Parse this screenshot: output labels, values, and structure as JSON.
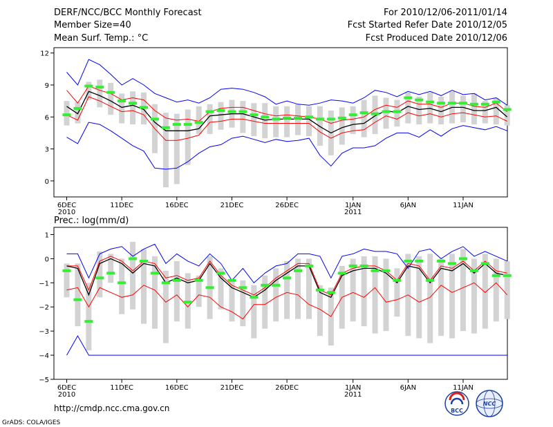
{
  "header": {
    "title": "DERF/NCC/BCC Monthly Forecast",
    "member_size": "Member Size=40",
    "variable": "Mean Surf. Temp.: °C",
    "period": "For 2010/12/06-2011/01/14",
    "start_date": "Fcst Started Refer Date 2010/12/05",
    "produced_date": "Fcst Produced Date 2010/12/06"
  },
  "footer": {
    "url": "http://cmdp.ncc.cma.gov.cn",
    "credit": "GrADS: COLA/IGES",
    "logo_bcc": "BCC",
    "logo_ncc": "NCC"
  },
  "colors": {
    "envelope": "#0000ff",
    "spread": "#ff0000",
    "mean": "#000000",
    "observed": "#33ee33",
    "box": "#d3d3d3"
  },
  "chart_data": [
    {
      "type": "line",
      "title": "Mean Surf. Temp.: °C",
      "x_start_day": 1,
      "xticks": [
        {
          "day": 1,
          "label": "6DEC",
          "year": "2010"
        },
        {
          "day": 6,
          "label": "11DEC",
          "year": ""
        },
        {
          "day": 11,
          "label": "16DEC",
          "year": ""
        },
        {
          "day": 16,
          "label": "21DEC",
          "year": ""
        },
        {
          "day": 21,
          "label": "26DEC",
          "year": ""
        },
        {
          "day": 27,
          "label": "1JAN",
          "year": "2011"
        },
        {
          "day": 32,
          "label": "6JAN",
          "year": ""
        },
        {
          "day": 37,
          "label": "11JAN",
          "year": ""
        }
      ],
      "ylim": [
        -1.5,
        12.5
      ],
      "yticks": [
        0,
        3,
        6,
        9,
        12
      ],
      "ytick_labels": [
        "0",
        "3",
        "6",
        "9",
        "12"
      ],
      "series": [
        {
          "name": "maximum",
          "values": [
            10.2,
            9.0,
            11.4,
            10.9,
            10.0,
            9.0,
            9.6,
            9.0,
            8.2,
            7.8,
            7.4,
            7.6,
            7.3,
            7.8,
            8.6,
            8.7,
            8.6,
            8.3,
            7.9,
            7.2,
            7.5,
            7.2,
            7.1,
            7.3,
            7.6,
            7.5,
            7.3,
            7.8,
            8.5,
            8.3,
            7.9,
            8.4,
            8.1,
            8.4,
            8.0,
            8.5,
            8.1,
            8.2,
            7.6,
            7.8,
            7.1
          ]
        },
        {
          "name": "upper",
          "values": [
            8.5,
            7.3,
            8.9,
            8.5,
            8.2,
            7.6,
            7.8,
            7.6,
            6.6,
            5.9,
            5.7,
            5.8,
            5.6,
            6.5,
            6.8,
            6.9,
            6.9,
            6.6,
            6.3,
            6.1,
            6.2,
            6.1,
            6.0,
            5.8,
            5.4,
            5.7,
            5.8,
            6.0,
            6.7,
            7.1,
            6.9,
            7.5,
            7.2,
            7.2,
            6.9,
            7.3,
            7.3,
            7.0,
            6.9,
            7.3,
            6.5
          ]
        },
        {
          "name": "mean",
          "values": [
            7.0,
            6.3,
            8.4,
            8.0,
            7.5,
            6.9,
            7.1,
            6.7,
            5.5,
            4.7,
            4.7,
            4.7,
            4.9,
            6.1,
            6.2,
            6.3,
            6.3,
            6.0,
            5.7,
            5.8,
            5.8,
            5.8,
            5.8,
            5.1,
            4.5,
            5.0,
            5.3,
            5.4,
            6.1,
            6.6,
            6.4,
            7.0,
            6.7,
            6.8,
            6.5,
            6.9,
            6.9,
            6.6,
            6.6,
            6.9,
            6.0
          ]
        },
        {
          "name": "lower",
          "values": [
            6.2,
            5.7,
            7.9,
            7.5,
            7.0,
            6.5,
            6.6,
            6.2,
            4.9,
            3.8,
            3.8,
            4.0,
            4.3,
            5.5,
            5.6,
            5.8,
            5.8,
            5.6,
            5.4,
            5.4,
            5.4,
            5.4,
            5.4,
            4.6,
            4.0,
            4.5,
            4.7,
            4.8,
            5.5,
            6.1,
            5.8,
            6.4,
            6.1,
            6.3,
            6.0,
            6.3,
            6.4,
            6.2,
            6.0,
            6.1,
            5.6
          ]
        },
        {
          "name": "minimum",
          "values": [
            4.1,
            3.5,
            5.5,
            5.3,
            4.7,
            4.0,
            3.3,
            2.8,
            1.2,
            1.1,
            1.2,
            1.8,
            2.6,
            3.2,
            3.4,
            4.0,
            4.2,
            3.9,
            3.6,
            3.9,
            3.7,
            3.8,
            4.0,
            2.4,
            1.4,
            2.6,
            3.1,
            3.1,
            3.3,
            4.0,
            4.5,
            4.5,
            4.1,
            4.8,
            4.2,
            4.9,
            5.2,
            5.0,
            4.8,
            5.1,
            4.7
          ]
        },
        {
          "name": "observed",
          "values": [
            6.2,
            6.8,
            8.9,
            8.8,
            8.3,
            7.5,
            7.3,
            6.9,
            5.8,
            5.0,
            5.3,
            5.3,
            5.5,
            6.5,
            6.6,
            6.5,
            6.5,
            6.2,
            6.0,
            5.8,
            5.9,
            5.9,
            6.0,
            5.8,
            5.8,
            5.9,
            6.2,
            6.4,
            6.3,
            6.5,
            6.5,
            7.8,
            7.6,
            7.4,
            7.3,
            7.3,
            7.3,
            7.2,
            7.2,
            7.4,
            6.7
          ]
        },
        {
          "name": "box_high",
          "values": [
            7.5,
            7.4,
            9.3,
            9.5,
            9.2,
            8.2,
            8.4,
            8.3,
            7.2,
            6.4,
            6.3,
            6.7,
            7.0,
            7.2,
            7.4,
            7.6,
            7.5,
            7.3,
            7.3,
            7.0,
            7.0,
            7.2,
            7.0,
            7.0,
            6.6,
            6.9,
            7.0,
            7.6,
            8.0,
            7.8,
            7.6,
            8.3,
            7.9,
            8.3,
            7.9,
            8.4,
            8.0,
            8.2,
            7.5,
            7.8,
            7.1
          ]
        },
        {
          "name": "box_low",
          "values": [
            5.2,
            5.4,
            7.6,
            6.9,
            6.2,
            5.4,
            5.3,
            5.3,
            2.6,
            -0.6,
            -0.3,
            1.5,
            4.4,
            4.4,
            4.8,
            5.0,
            4.5,
            4.2,
            4.0,
            4.1,
            4.1,
            4.3,
            4.2,
            3.3,
            2.4,
            3.4,
            4.4,
            4.1,
            4.4,
            4.9,
            5.1,
            5.4,
            5.3,
            5.4,
            5.3,
            5.4,
            5.5,
            5.3,
            5.4,
            5.3,
            5.2
          ]
        }
      ]
    },
    {
      "type": "line",
      "title": "Prec.: log(mm/d)",
      "x_start_day": 1,
      "xticks": [
        {
          "day": 1,
          "label": "6DEC",
          "year": "2010"
        },
        {
          "day": 6,
          "label": "11DEC",
          "year": ""
        },
        {
          "day": 11,
          "label": "16DEC",
          "year": ""
        },
        {
          "day": 16,
          "label": "21DEC",
          "year": ""
        },
        {
          "day": 21,
          "label": "26DEC",
          "year": ""
        },
        {
          "day": 27,
          "label": "1JAN",
          "year": "2011"
        },
        {
          "day": 32,
          "label": "6JAN",
          "year": ""
        },
        {
          "day": 37,
          "label": "11JAN",
          "year": ""
        }
      ],
      "ylim": [
        -5,
        1.3
      ],
      "yticks": [
        1,
        0,
        -1,
        -2,
        -3,
        -4,
        -5
      ],
      "ytick_labels": [
        "1",
        "0",
        "−1",
        "−2",
        "−3",
        "−4",
        "−5"
      ],
      "series": [
        {
          "name": "maximum",
          "values": [
            0.2,
            0.2,
            -0.8,
            0.2,
            0.4,
            0.5,
            0.1,
            0.4,
            0.6,
            -0.2,
            0.2,
            -0.1,
            -0.3,
            0.2,
            -0.2,
            -0.9,
            -0.4,
            -1.0,
            -0.6,
            -0.3,
            -0.2,
            0.2,
            0.2,
            0.1,
            -0.8,
            0.1,
            0.2,
            0.4,
            0.3,
            0.3,
            0.2,
            -0.4,
            0.3,
            0.4,
            0.0,
            0.3,
            0.5,
            0.1,
            0.3,
            0.1,
            -0.1
          ]
        },
        {
          "name": "upper",
          "values": [
            -0.3,
            -0.3,
            -1.3,
            -0.1,
            0.1,
            -0.1,
            -0.5,
            -0.1,
            -0.2,
            -0.8,
            -0.7,
            -0.9,
            -0.8,
            -0.1,
            -0.7,
            -1.1,
            -1.3,
            -1.5,
            -1.2,
            -0.8,
            -0.5,
            -0.2,
            -0.2,
            -1.3,
            -1.5,
            -0.6,
            -0.4,
            -0.3,
            -0.3,
            -0.5,
            -0.9,
            -0.2,
            -0.3,
            -0.9,
            -0.3,
            -0.4,
            -0.1,
            -0.5,
            -0.1,
            -0.5,
            -0.6
          ]
        },
        {
          "name": "mean",
          "values": [
            -0.3,
            -0.4,
            -1.5,
            -0.2,
            0.0,
            -0.2,
            -0.6,
            -0.2,
            -0.3,
            -1.0,
            -0.8,
            -1.0,
            -0.9,
            -0.2,
            -0.8,
            -1.2,
            -1.4,
            -1.6,
            -1.3,
            -0.9,
            -0.6,
            -0.3,
            -0.3,
            -1.4,
            -1.6,
            -0.7,
            -0.5,
            -0.4,
            -0.4,
            -0.6,
            -1.0,
            -0.3,
            -0.4,
            -1.0,
            -0.4,
            -0.5,
            -0.2,
            -0.6,
            -0.2,
            -0.6,
            -0.7
          ]
        },
        {
          "name": "lower",
          "values": [
            -1.3,
            -1.2,
            -2.0,
            -1.2,
            -1.4,
            -1.6,
            -1.5,
            -1.1,
            -1.3,
            -1.8,
            -1.5,
            -2.0,
            -1.5,
            -1.6,
            -2.0,
            -2.2,
            -2.5,
            -1.9,
            -1.9,
            -1.6,
            -1.4,
            -1.5,
            -1.9,
            -2.1,
            -2.4,
            -1.6,
            -1.4,
            -1.6,
            -1.2,
            -1.8,
            -1.7,
            -1.5,
            -1.8,
            -1.6,
            -1.1,
            -1.4,
            -1.2,
            -1.0,
            -1.4,
            -1.0,
            -1.5
          ]
        },
        {
          "name": "minimum",
          "values": [
            -4.0,
            -3.2,
            -4.0,
            -4.0,
            -4.0,
            -4.0,
            -4.0,
            -4.0,
            -4.0,
            -4.0,
            -4.0,
            -4.0,
            -4.0,
            -4.0,
            -4.0,
            -4.0,
            -4.0,
            -4.0,
            -4.0,
            -4.0,
            -4.0,
            -4.0,
            -4.0,
            -4.0,
            -4.0,
            -4.0,
            -4.0,
            -4.0,
            -4.0,
            -4.0,
            -4.0,
            -4.0,
            -4.0,
            -4.0,
            -4.0,
            -4.0,
            -4.0,
            -4.0,
            -4.0,
            -4.0,
            -4.0
          ]
        },
        {
          "name": "observed",
          "values": [
            -0.5,
            -1.7,
            -2.6,
            -0.8,
            -0.6,
            -1.0,
            0.0,
            -0.1,
            -0.6,
            -1.0,
            -0.9,
            -1.8,
            -0.9,
            -1.2,
            -0.6,
            -0.9,
            -1.2,
            -1.6,
            -1.1,
            -1.1,
            -0.8,
            -0.5,
            -0.3,
            -1.3,
            -1.4,
            -0.6,
            -0.3,
            -0.3,
            -0.5,
            -0.5,
            -0.9,
            -0.1,
            -0.1,
            -0.9,
            -0.1,
            -0.2,
            0.0,
            -0.5,
            -0.2,
            -0.7,
            -0.7
          ]
        },
        {
          "name": "box_high",
          "values": [
            -0.2,
            -0.2,
            -1.0,
            0.3,
            0.2,
            0.0,
            0.7,
            0.4,
            0.1,
            -0.5,
            -0.1,
            -0.6,
            -0.7,
            0.1,
            -0.4,
            -0.9,
            -0.9,
            -1.1,
            -0.7,
            -0.4,
            -0.1,
            0.0,
            0.0,
            -1.1,
            -1.2,
            -0.3,
            0.0,
            0.1,
            0.1,
            0.0,
            -0.4,
            0.2,
            0.1,
            0.2,
            0.0,
            0.2,
            0.4,
            0.0,
            0.2,
            0.0,
            -0.1
          ]
        },
        {
          "name": "box_low",
          "values": [
            -1.6,
            -2.8,
            -3.8,
            -1.6,
            -1.0,
            -2.3,
            -2.1,
            -2.7,
            -2.9,
            -3.5,
            -2.6,
            -2.9,
            -2.0,
            -2.5,
            -2.1,
            -2.6,
            -2.8,
            -3.3,
            -2.9,
            -2.6,
            -2.5,
            -2.5,
            -2.5,
            -3.2,
            -3.6,
            -2.9,
            -2.6,
            -2.8,
            -3.1,
            -3.0,
            -2.4,
            -3.2,
            -3.3,
            -3.5,
            -3.2,
            -3.3,
            -3.0,
            -3.1,
            -2.9,
            -2.6,
            -2.5
          ]
        }
      ]
    }
  ]
}
